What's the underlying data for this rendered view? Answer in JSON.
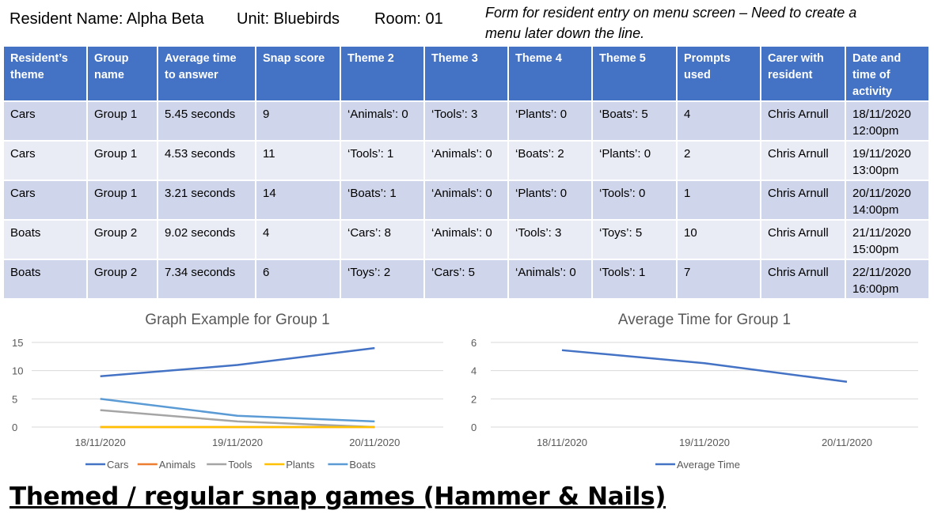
{
  "header": {
    "resident_name": "Resident Name: Alpha Beta",
    "unit": "Unit: Bluebirds",
    "room": "Room: 01",
    "note": "Form for resident entry on menu screen – Need to create a menu later down the line."
  },
  "table": {
    "columns": [
      "Resident’s theme",
      "Group name",
      "Average time to answer",
      "Snap score",
      "Theme 2",
      "Theme 3",
      "Theme 4",
      "Theme 5",
      "Prompts used",
      "Carer with resident",
      "Date and time of activity"
    ],
    "rows": [
      [
        "Cars",
        "Group 1",
        "5.45 seconds",
        "9",
        "‘Animals’: 0",
        "‘Tools’: 3",
        "‘Plants’: 0",
        "‘Boats’: 5",
        "4",
        "Chris Arnull",
        "18/11/2020 12:00pm"
      ],
      [
        "Cars",
        "Group 1",
        "4.53 seconds",
        "11",
        "‘Tools’: 1",
        "‘Animals’: 0",
        "‘Boats’: 2",
        "‘Plants’: 0",
        "2",
        "Chris Arnull",
        "19/11/2020 13:00pm"
      ],
      [
        "Cars",
        "Group 1",
        "3.21 seconds",
        "14",
        "‘Boats’: 1",
        "‘Animals’: 0",
        "‘Plants’: 0",
        "‘Tools’: 0",
        "1",
        "Chris Arnull",
        "20/11/2020 14:00pm"
      ],
      [
        "Boats",
        "Group 2",
        "9.02 seconds",
        "4",
        "‘Cars’: 8",
        "‘Animals’: 0",
        "‘Tools’: 3",
        "‘Toys’: 5",
        "10",
        "Chris Arnull",
        "21/11/2020 15:00pm"
      ],
      [
        "Boats",
        "Group 2",
        "7.34 seconds",
        "6",
        "‘Toys’: 2",
        "‘Cars’: 5",
        "‘Animals’: 0",
        "‘Tools’: 1",
        "7",
        "Chris Arnull",
        "22/11/2020 16:00pm"
      ]
    ]
  },
  "chart_data": [
    {
      "type": "line",
      "title": "Graph Example for Group 1",
      "categories": [
        "18/11/2020",
        "19/11/2020",
        "20/11/2020"
      ],
      "ylim": [
        0,
        15
      ],
      "yticks": [
        0,
        5,
        10,
        15
      ],
      "grid": true,
      "legend": "bottom",
      "series": [
        {
          "name": "Cars",
          "values": [
            9,
            11,
            14
          ],
          "color": "#4472c4"
        },
        {
          "name": "Animals",
          "values": [
            0,
            0,
            0
          ],
          "color": "#ed7d31"
        },
        {
          "name": "Tools",
          "values": [
            3,
            1,
            0
          ],
          "color": "#a5a5a5"
        },
        {
          "name": "Plants",
          "values": [
            0,
            0,
            0
          ],
          "color": "#ffc000"
        },
        {
          "name": "Boats",
          "values": [
            5,
            2,
            1
          ],
          "color": "#5b9bd5"
        }
      ]
    },
    {
      "type": "line",
      "title": "Average Time for Group 1",
      "categories": [
        "18/11/2020",
        "19/11/2020",
        "20/11/2020"
      ],
      "ylim": [
        0,
        6
      ],
      "yticks": [
        0,
        2,
        4,
        6
      ],
      "grid": true,
      "legend": "bottom",
      "series": [
        {
          "name": "Average Time",
          "values": [
            5.45,
            4.53,
            3.21
          ],
          "color": "#4472c4"
        }
      ]
    }
  ],
  "footer": {
    "title": "Themed / regular snap games (Hammer & Nails)"
  }
}
